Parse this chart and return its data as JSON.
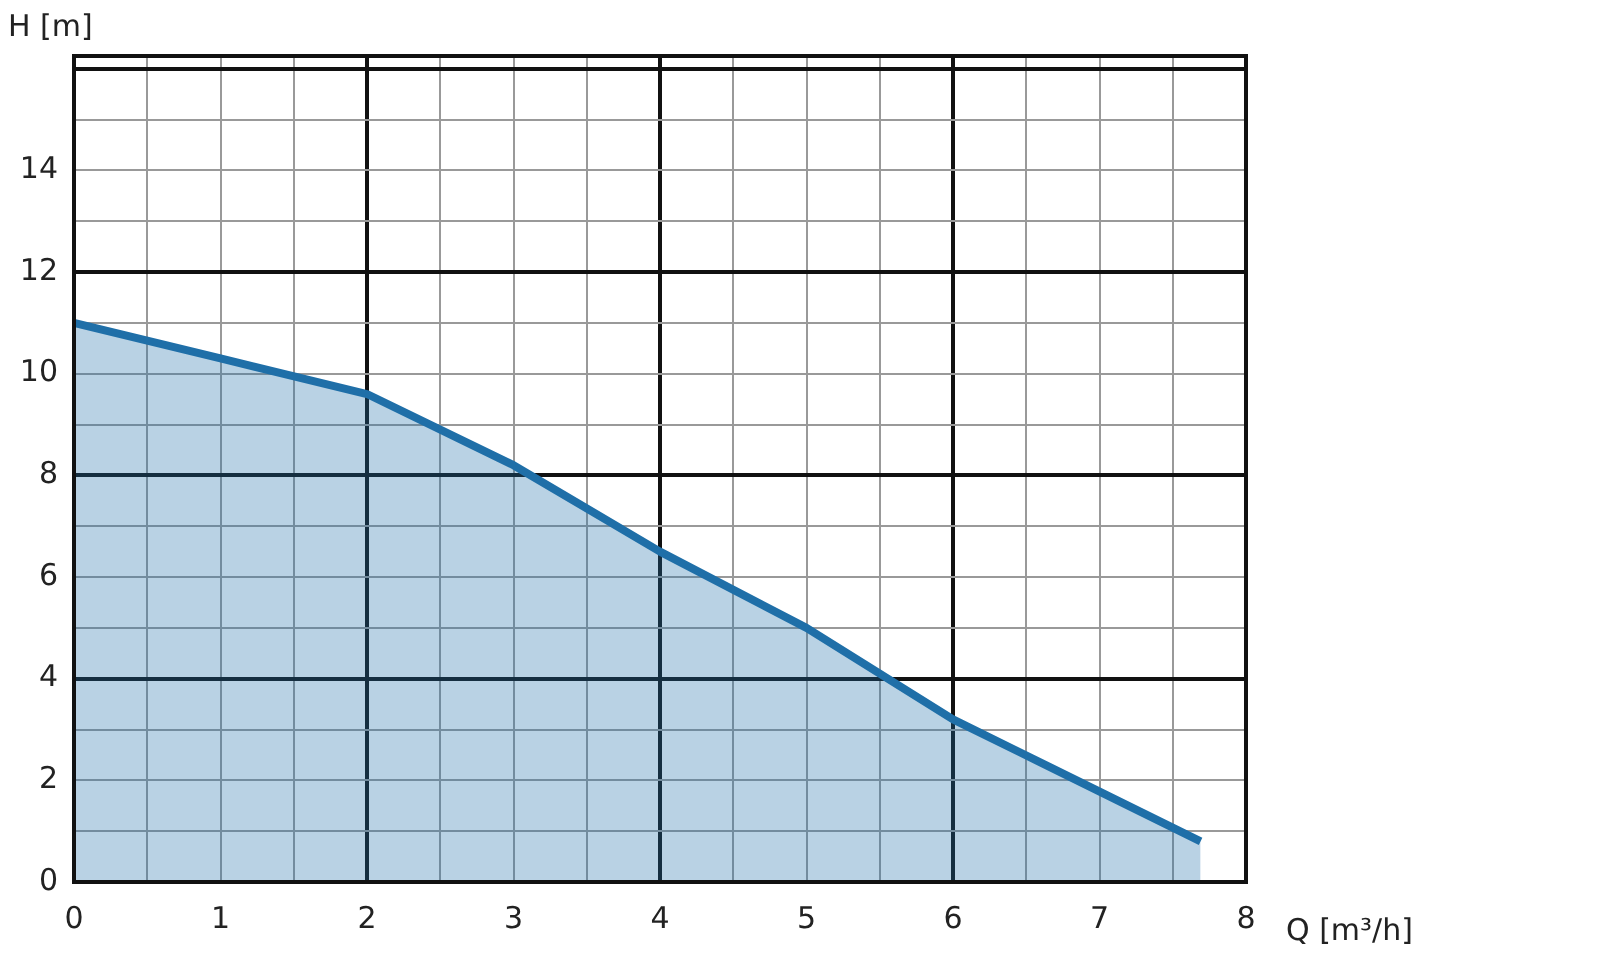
{
  "chart_data": {
    "type": "area",
    "xlabel": "Q [m³/h]",
    "ylabel": "H [m]",
    "x": [
      0,
      1,
      2,
      3,
      4,
      5,
      6,
      7.69
    ],
    "series": [
      {
        "color": "#1f6fa8",
        "values": [
          11.0,
          10.3,
          9.6,
          8.2,
          6.5,
          5.0,
          3.2,
          0.8
        ]
      }
    ],
    "xlim": [
      0,
      8
    ],
    "xticks": [
      0,
      {
        "value": 0.5,
        "label": null
      },
      1,
      {
        "value": 1.5,
        "label": null
      },
      2,
      {
        "value": 2.5,
        "label": null
      },
      3,
      {
        "value": 3.5,
        "label": null
      },
      4,
      {
        "value": 4.5,
        "label": null
      },
      5,
      {
        "value": 5.5,
        "label": null
      },
      6,
      {
        "value": 6.5,
        "label": null
      },
      7,
      {
        "value": 7.5,
        "label": null
      },
      8
    ],
    "ylim": [
      0,
      16.25
    ],
    "yticks": [
      0,
      {
        "value": 1,
        "label": null
      },
      2,
      {
        "value": 3,
        "label": null
      },
      4,
      {
        "value": 5,
        "label": null
      },
      6,
      {
        "value": 7,
        "label": null
      },
      8,
      {
        "value": 9,
        "label": null
      },
      10,
      {
        "value": 11,
        "label": null
      },
      12,
      {
        "value": 13,
        "label": null
      },
      14,
      {
        "value": 15,
        "label": null
      },
      {
        "value": 16,
        "label": null
      }
    ],
    "grid": true,
    "legend": false,
    "marker": "none",
    "line_style": "solid"
  }
}
